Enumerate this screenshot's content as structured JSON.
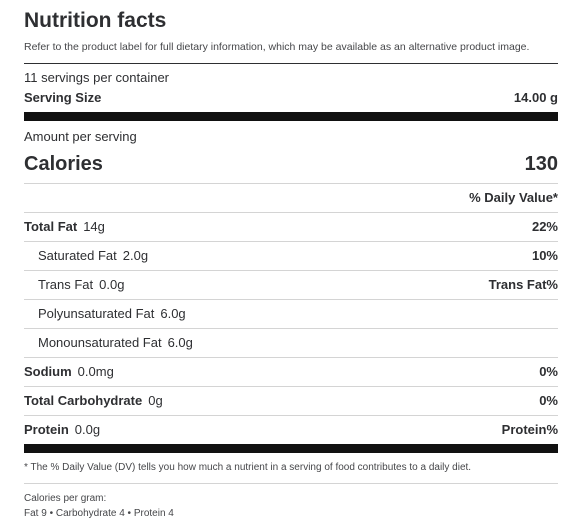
{
  "header": {
    "title": "Nutrition facts",
    "disclaimer": "Refer to the product label for full dietary information, which may be available as an alternative product image."
  },
  "serving": {
    "servings_per_container": "11 servings per container",
    "size_label": "Serving Size",
    "size_value": "14.00 g"
  },
  "amount": {
    "label": "Amount per serving"
  },
  "calories": {
    "label": "Calories",
    "value": "130"
  },
  "daily_value_header": "% Daily Value*",
  "nutrients": [
    {
      "name": "Total Fat",
      "amount": "14g",
      "dv": "22%"
    },
    {
      "name": "Saturated Fat",
      "amount": "2.0g",
      "dv": "10%"
    },
    {
      "name": "Trans Fat",
      "amount": "0.0g",
      "dv": "Trans Fat%"
    },
    {
      "name": "Polyunsaturated Fat",
      "amount": "6.0g",
      "dv": ""
    },
    {
      "name": "Monounsaturated Fat",
      "amount": "6.0g",
      "dv": ""
    },
    {
      "name": "Sodium",
      "amount": "0.0mg",
      "dv": "0%"
    },
    {
      "name": "Total Carbohydrate",
      "amount": "0g",
      "dv": "0%"
    },
    {
      "name": "Protein",
      "amount": "0.0g",
      "dv": "Protein%"
    }
  ],
  "footnote": "* The % Daily Value (DV) tells you how much a nutrient in a serving of food contributes to a daily diet.",
  "calories_per_gram": {
    "label": "Calories per gram:",
    "values": "Fat 9 • Carbohydrate 4 • Protein 4"
  }
}
